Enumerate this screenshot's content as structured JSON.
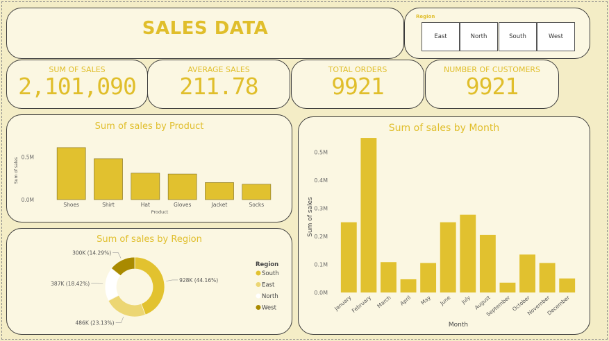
{
  "header": {
    "title": "SALES DATA"
  },
  "region_slicer": {
    "label": "Region",
    "options": [
      "East",
      "North",
      "South",
      "West"
    ]
  },
  "kpis": [
    {
      "label": "SUM OF SALES",
      "value": "2,101,090"
    },
    {
      "label": "AVERAGE SALES",
      "value": "211.78"
    },
    {
      "label": "TOTAL ORDERS",
      "value": "9921"
    },
    {
      "label": "NUMBER OF CUSTOMERS",
      "value": "9921"
    }
  ],
  "colors": {
    "accent": "#e0be2b",
    "bar": "#e1c12f",
    "south": "#e2c22f",
    "east": "#ecd673",
    "north": "#ffffff",
    "west": "#a98a00"
  },
  "chart_data": [
    {
      "type": "bar",
      "title": "Sum of sales by Product",
      "xlabel": "Product",
      "ylabel": "Sum of sales",
      "categories": [
        "Shoes",
        "Shirt",
        "Hat",
        "Gloves",
        "Jacket",
        "Socks"
      ],
      "values": [
        0.61,
        0.48,
        0.31,
        0.3,
        0.2,
        0.18
      ],
      "unit": "M",
      "ticks": [
        "0.0M",
        "0.5M"
      ],
      "ylim": [
        0,
        0.65
      ]
    },
    {
      "type": "pie",
      "title": "Sum of sales by Region",
      "legend_title": "Region",
      "legend_position": "right",
      "categories": [
        "South",
        "East",
        "North",
        "West"
      ],
      "values": [
        928,
        486,
        387,
        300
      ],
      "labels": [
        "928K (44.16%)",
        "486K (23.13%)",
        "387K (18.42%)",
        "300K (14.29%)"
      ]
    },
    {
      "type": "bar",
      "title": "Sum of sales by Month",
      "xlabel": "Month",
      "ylabel": "Sum of sales",
      "categories": [
        "January",
        "February",
        "March",
        "April",
        "May",
        "June",
        "July",
        "August",
        "September",
        "October",
        "November",
        "December"
      ],
      "values": [
        0.25,
        0.55,
        0.108,
        0.047,
        0.105,
        0.25,
        0.277,
        0.205,
        0.035,
        0.135,
        0.105,
        0.05
      ],
      "ticks": [
        "0.0M",
        "0.1M",
        "0.2M",
        "0.3M",
        "0.4M",
        "0.5M"
      ],
      "ylim": [
        0,
        0.56
      ]
    }
  ]
}
